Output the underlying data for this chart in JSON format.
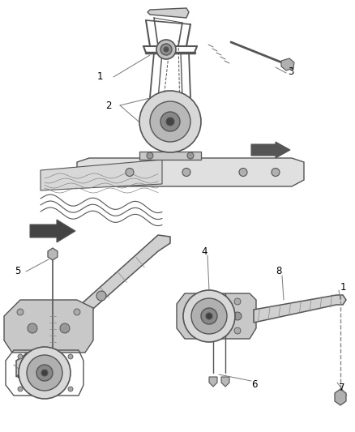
{
  "bg": "#ffffff",
  "lc": "#555555",
  "tc": "#000000",
  "lc_light": "#888888",
  "lc_dark": "#333333",
  "fig_w": 4.38,
  "fig_h": 5.33,
  "dpi": 100,
  "label_fs": 8.5,
  "leader_lw": 0.7,
  "part_lw": 1.0
}
